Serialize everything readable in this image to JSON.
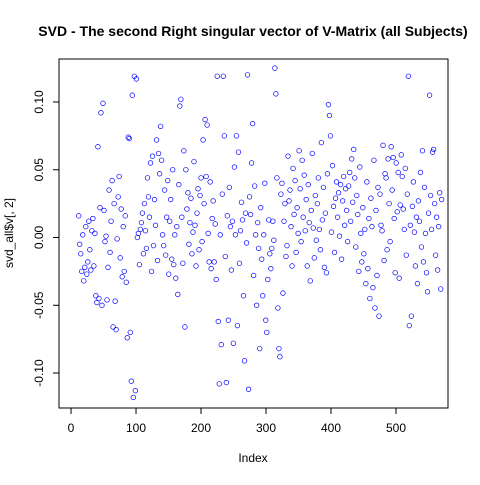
{
  "chart_data": {
    "type": "scatter",
    "title": "SVD - The second Right singular vector of V-Matrix (all Subjects)",
    "x_label": "Index",
    "y_label": "svd_all$v[, 2]",
    "color": "#0000ff",
    "xlim": [
      -18.5,
      580
    ],
    "ylim": [
      -0.1258,
      0.1317
    ],
    "xticks": [
      0,
      100,
      200,
      300,
      400,
      500
    ],
    "yticks": [
      {
        "value": -0.1,
        "label": "-0.10"
      },
      {
        "value": -0.05,
        "label": "-0.05"
      },
      {
        "value": 0,
        "label": "0.00"
      },
      {
        "value": 0.05,
        "label": "0.05"
      },
      {
        "value": 0.1,
        "label": "0.10"
      }
    ],
    "values": [
      0.016,
      -0.005,
      -0.012,
      -0.025,
      0.002,
      -0.032,
      -0.022,
      0.008,
      -0.027,
      -0.018,
      0.012,
      -0.009,
      -0.024,
      0.005,
      0.014,
      -0.021,
      0.003,
      -0.043,
      -0.048,
      0.067,
      -0.045,
      0.022,
      0.092,
      -0.05,
      0.099,
      0.02,
      -0.003,
      0.001,
      -0.046,
      -0.022,
      0.035,
      -0.011,
      0.012,
      0.042,
      -0.066,
      0.025,
      -0.047,
      -0.068,
      -0.001,
      0.03,
      0.045,
      -0.015,
      0.021,
      -0.029,
      0.008,
      -0.025,
      0.016,
      -0.033,
      -0.074,
      0.074,
      0.073,
      -0.07,
      -0.106,
      0.105,
      -0.118,
      0.119,
      -0.113,
      0.117,
      0.0,
      0.003,
      -0.02,
      0.006,
      0.011,
      0.018,
      -0.012,
      0.025,
      0.005,
      -0.008,
      0.044,
      0.03,
      0.015,
      0.055,
      -0.025,
      0.06,
      -0.006,
      0.028,
      0.009,
      0.072,
      -0.017,
      0.062,
      0.047,
      0.082,
      0.057,
      0.002,
      -0.006,
      0.035,
      -0.013,
      0.015,
      0.042,
      -0.027,
      0.012,
      0.028,
      -0.016,
      0.05,
      -0.02,
      0.002,
      -0.03,
      0.008,
      -0.042,
      0.039,
      0.097,
      0.102,
      0.015,
      -0.019,
      0.064,
      -0.066,
      0.05,
      0.021,
      0.033,
      -0.005,
      0.011,
      0.029,
      -0.012,
      0.004,
      0.056,
      0.009,
      -0.021,
      0.018,
      0.036,
      -0.009,
      0.031,
      0.044,
      -0.003,
      0.072,
      0.025,
      0.087,
      0.045,
      0.083,
      0.003,
      -0.018,
      0.041,
      -0.023,
      0.014,
      0.027,
      -0.018,
      0.01,
      -0.031,
      0.119,
      -0.062,
      -0.108,
      0.002,
      -0.079,
      0.032,
      0.119,
      0.075,
      -0.014,
      -0.107,
      0.016,
      -0.061,
      0.037,
      0.008,
      -0.024,
      0.012,
      -0.078,
      0.052,
      0.002,
      0.075,
      -0.065,
      0.063,
      -0.019,
      0.005,
      0.026,
      0.013,
      -0.043,
      -0.091,
      0.018,
      -0.004,
      0.12,
      -0.112,
      0.03,
      0.017,
      0.055,
      0.084,
      -0.028,
      0.038,
      0.002,
      -0.05,
      0.011,
      -0.008,
      -0.082,
      0.022,
      -0.016,
      -0.043,
      0.002,
      0.04,
      -0.061,
      -0.07,
      -0.031,
      0.013,
      -0.012,
      -0.023,
      -0.008,
      0.012,
      -0.002,
      0.125,
      0.106,
      0.044,
      -0.052,
      -0.082,
      -0.088,
      0.032,
      0.04,
      -0.041,
      0.012,
      0.025,
      -0.014,
      -0.006,
      0.06,
      0.027,
      0.035,
      0.008,
      -0.021,
      0.051,
      0.017,
      0.042,
      -0.011,
      0.022,
      0.003,
      0.064,
      0.036,
      -0.003,
      0.057,
      0.015,
      0.046,
      0.005,
      0.028,
      -0.021,
      0.039,
      0.011,
      -0.032,
      0.02,
      0.062,
      0.007,
      -0.015,
      0.031,
      -0.002,
      0.025,
      0.044,
      0.006,
      -0.009,
      0.07,
      0.013,
      0.037,
      -0.022,
      0.018,
      -0.026,
      0.047,
      0.098,
      0.09,
      0.075,
      0.004,
      0.053,
      0.023,
      -0.011,
      0.029,
      0.041,
      0.015,
      0.033,
      0.001,
      0.039,
      -0.016,
      0.027,
      0.045,
      0.009,
      0.036,
      0.02,
      -0.003,
      0.038,
      0.048,
      0.012,
      0.058,
      0.026,
      0.065,
      0.044,
      -0.007,
      0.031,
      0.017,
      -0.025,
      0.052,
      0.003,
      -0.018,
      0.022,
      -0.012,
      0.006,
      -0.034,
      0.041,
      -0.023,
      0.014,
      -0.045,
      0.029,
      0.008,
      -0.037,
      0.057,
      -0.052,
      0.02,
      -0.028,
      0.037,
      -0.058,
      0.032,
      0.009,
      0.005,
      0.068,
      -0.017,
      0.047,
      0.044,
      -0.009,
      0.058,
      0.025,
      -0.003,
      0.067,
      0.035,
      0.059,
      0.014,
      -0.026,
      0.055,
      0.019,
      0.048,
      -0.03,
      0.024,
      0.061,
      0.045,
      0.021,
      0.006,
      0.051,
      -0.013,
      0.032,
      0.119,
      -0.065,
      0.009,
      -0.058,
      0.023,
      0.041,
      0.004,
      -0.021,
      0.015,
      -0.034,
      0.027,
      0.012,
      0.048,
      -0.007,
      0.064,
      -0.018,
      0.037,
      0.003,
      -0.026,
      -0.04,
      0.018,
      0.105,
      0.031,
      0.006,
      0.063,
      0.065,
      0.025,
      -0.013,
      0.015,
      -0.024,
      0.008,
      0.033,
      -0.038,
      0.028
    ],
    "grid": false
  }
}
